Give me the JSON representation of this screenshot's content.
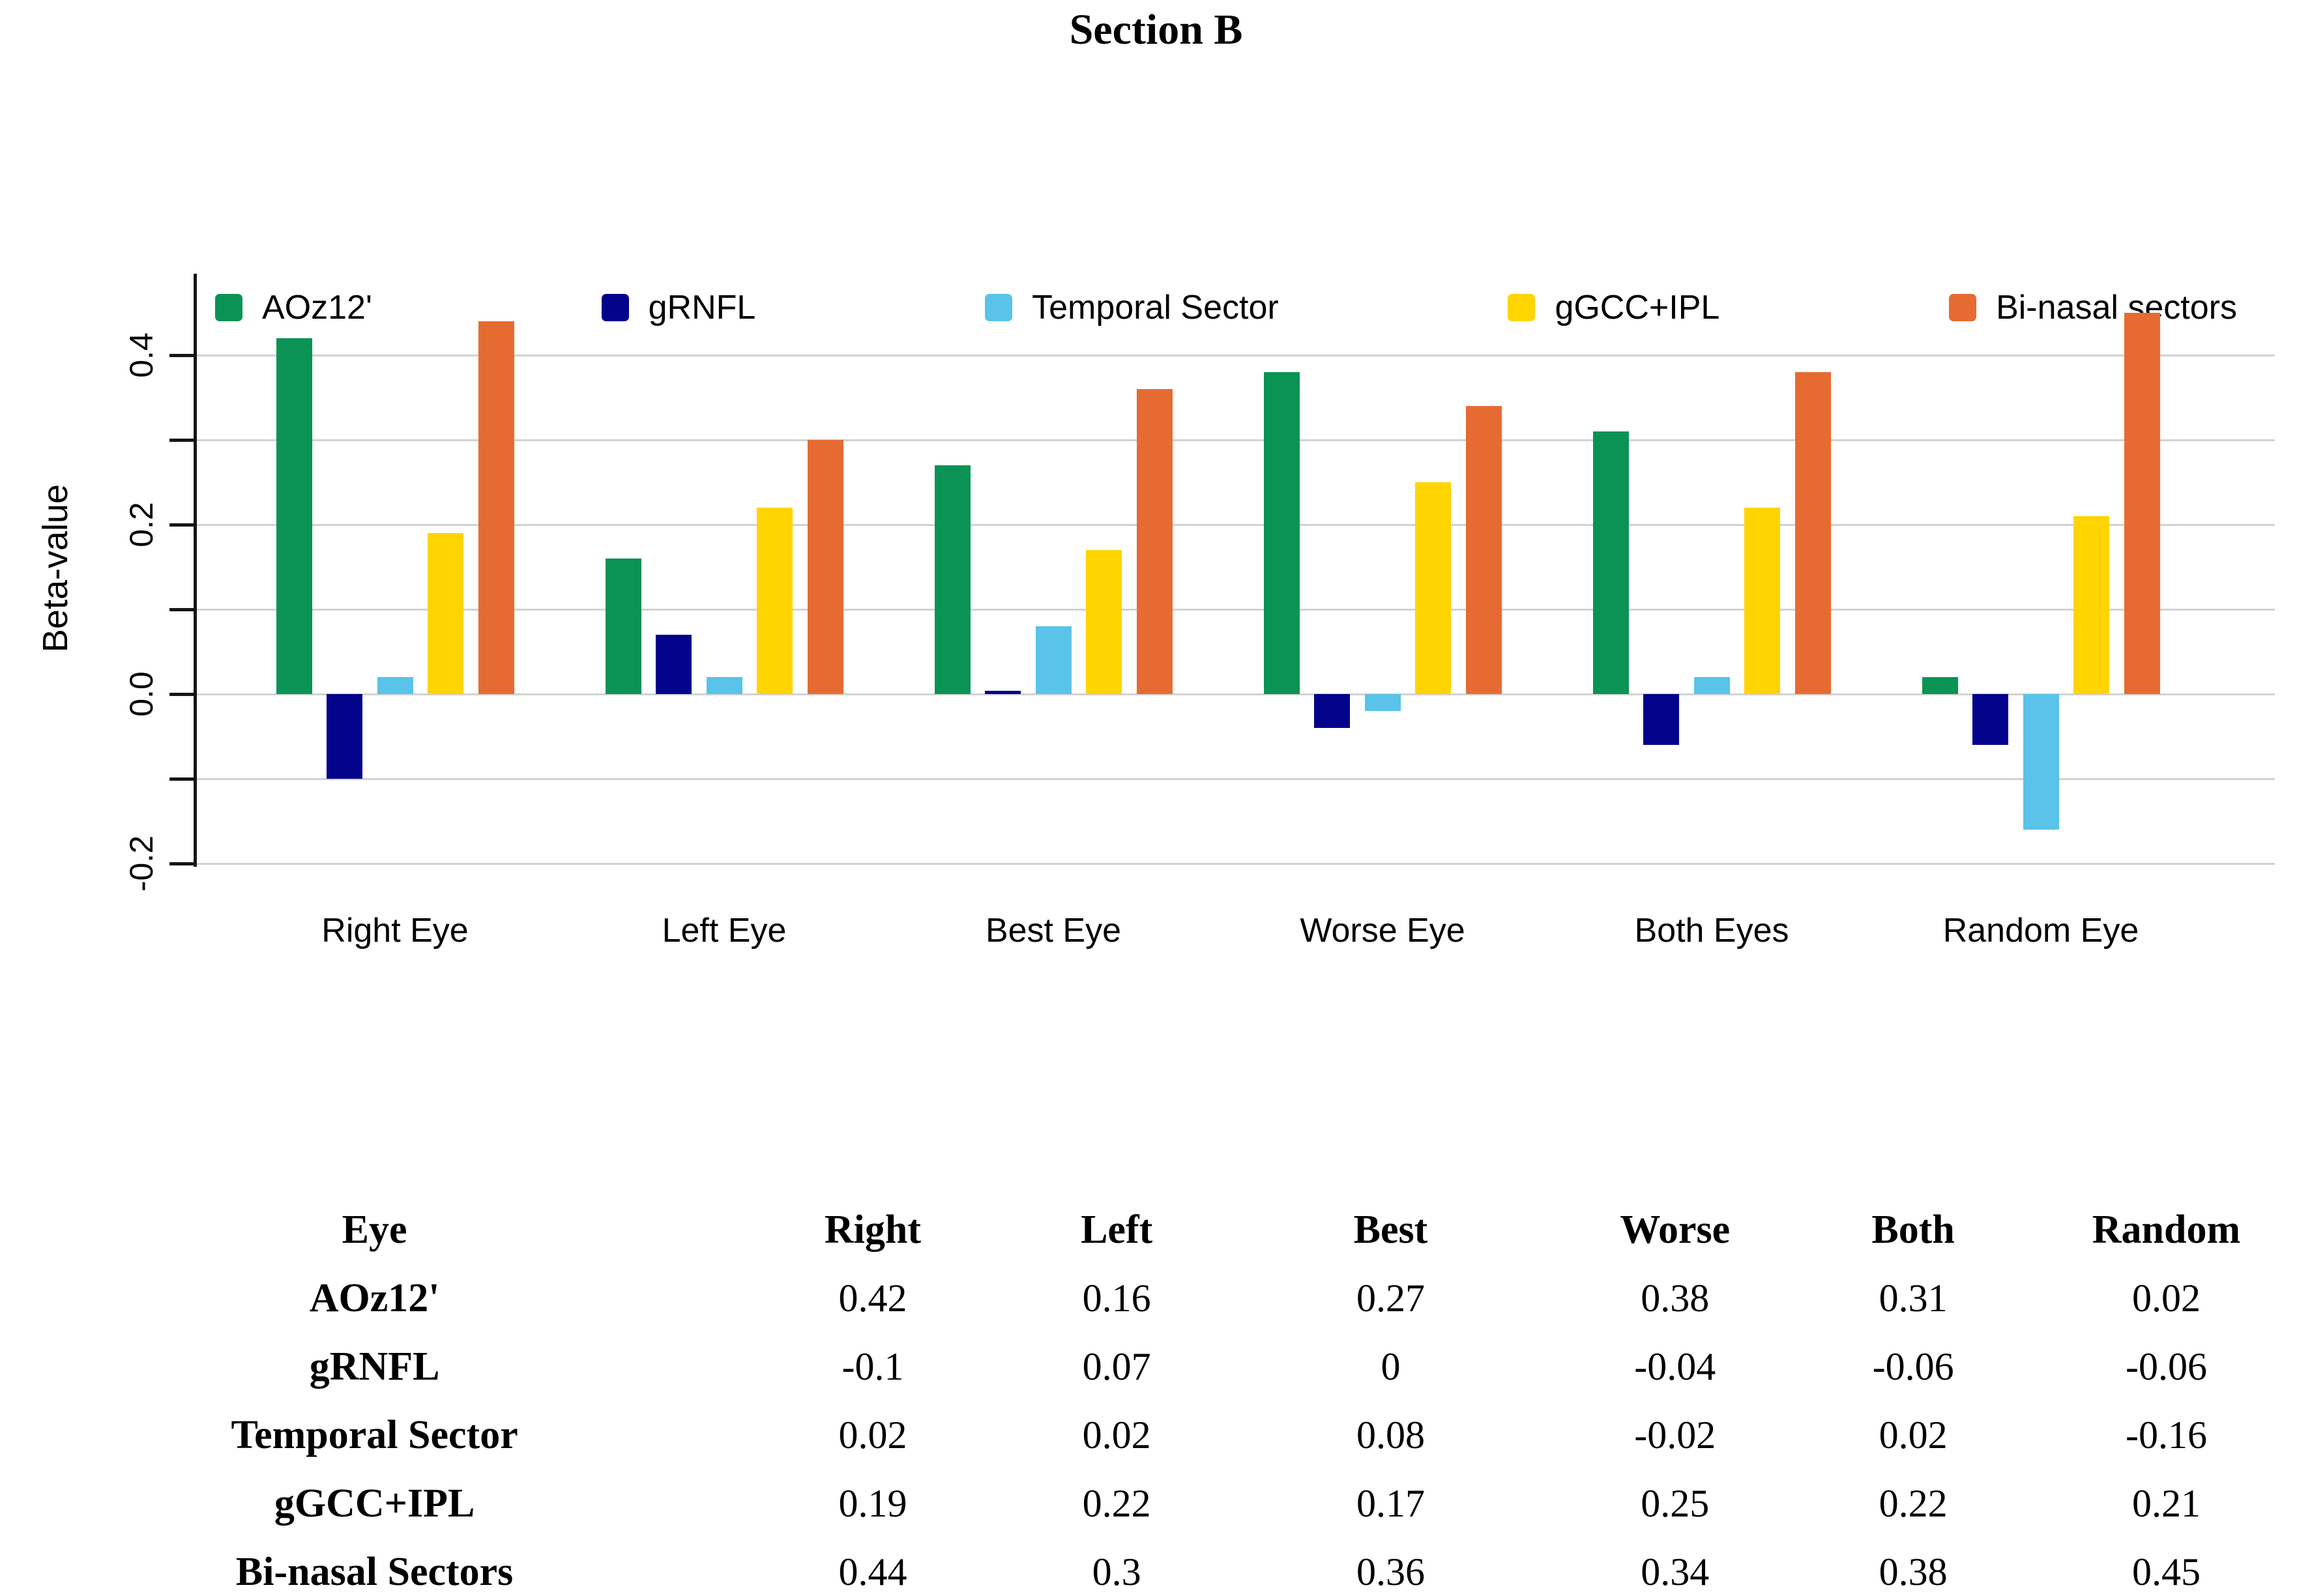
{
  "title": "Section B",
  "chart_data": {
    "type": "bar",
    "title": "Section B",
    "xlabel": "",
    "ylabel": "Beta-value",
    "categories": [
      "Right Eye",
      "Left Eye",
      "Best Eye",
      "Worse Eye",
      "Both Eyes",
      "Random Eye"
    ],
    "series": [
      {
        "name": "AOz12'",
        "color": "#0A9355",
        "values": [
          0.42,
          0.16,
          0.27,
          0.38,
          0.31,
          0.02
        ]
      },
      {
        "name": "gRNFL",
        "color": "#03038C",
        "values": [
          -0.1,
          0.07,
          0,
          -0.04,
          -0.06,
          -0.06
        ]
      },
      {
        "name": "Temporal Sector",
        "color": "#59C3EA",
        "values": [
          0.02,
          0.02,
          0.08,
          -0.02,
          0.02,
          -0.16
        ]
      },
      {
        "name": "gGCC+IPL",
        "color": "#FFD401",
        "values": [
          0.19,
          0.22,
          0.17,
          0.25,
          0.22,
          0.21
        ]
      },
      {
        "name": "Bi-nasal sectors",
        "color": "#E66B33",
        "values": [
          0.44,
          0.3,
          0.36,
          0.34,
          0.38,
          0.45
        ]
      }
    ],
    "ylim": [
      -0.25,
      0.46
    ],
    "grid": true,
    "gridline_values": [
      0.4,
      0.3,
      0.2,
      0.1,
      0.0,
      -0.1,
      -0.2
    ],
    "ytick_labels": [
      {
        "value": 0.4,
        "label": "0.4"
      },
      {
        "value": 0.2,
        "label": "0.2"
      },
      {
        "value": 0.0,
        "label": "0.0"
      },
      {
        "value": -0.2,
        "label": "-0.2"
      }
    ],
    "legend_position": "top"
  },
  "table": {
    "header": [
      "Eye",
      "Right",
      "Left",
      "Best",
      "Worse",
      "Both",
      "Random"
    ],
    "rows": [
      {
        "label": "AOz12'",
        "values": [
          "0.42",
          "0.16",
          "0.27",
          "0.38",
          "0.31",
          "0.02"
        ]
      },
      {
        "label": "gRNFL",
        "values": [
          "-0.1",
          "0.07",
          "0",
          "-0.04",
          "-0.06",
          "-0.06"
        ]
      },
      {
        "label": "Temporal Sector",
        "values": [
          "0.02",
          "0.02",
          "0.08",
          "-0.02",
          "0.02",
          "-0.16"
        ]
      },
      {
        "label": "gGCC+IPL",
        "values": [
          "0.19",
          "0.22",
          "0.17",
          "0.25",
          "0.22",
          "0.21"
        ]
      },
      {
        "label": "Bi-nasal Sectors",
        "values": [
          "0.44",
          "0.3",
          "0.36",
          "0.34",
          "0.38",
          "0.45"
        ]
      }
    ]
  },
  "colors": {
    "gridline": "#d2d2d2",
    "axis": "#151515",
    "text": "#000000"
  }
}
